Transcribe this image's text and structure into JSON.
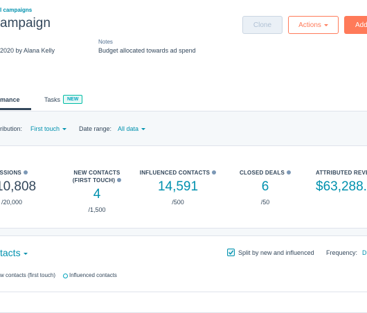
{
  "breadcrumb": "l campaigns",
  "header": {
    "title": "ampaign",
    "meta": "2020 by Alana Kelly",
    "notes_label": "Notes",
    "notes": "Budget allocated towards ad spend",
    "buttons": [
      "Clone",
      "Actions",
      "Add"
    ]
  },
  "tabs": [
    {
      "label": "mance"
    },
    {
      "label": "Tasks",
      "badge": "NEW"
    }
  ],
  "filters": {
    "attribution_label": "ribution:",
    "attribution": "First touch",
    "date_label": "Date range:",
    "date": "All data"
  },
  "stats": [
    {
      "label": "ESSIONS",
      "value": "10,808",
      "goal": "/20,000"
    },
    {
      "label": "NEW CONTACTS (FIRST TOUCH)",
      "value": "4",
      "goal": "/1,500"
    },
    {
      "label": "INFLUENCED CONTACTS",
      "value": "14,591",
      "goal": "/500"
    },
    {
      "label": "CLOSED DEALS",
      "value": "6",
      "goal": "/50"
    },
    {
      "label": "ATTRIBUTED REVEN",
      "value": "$63,288."
    }
  ],
  "section": {
    "title": "tacts",
    "checkbox": "Split by new and influenced",
    "frequency_label": "Frequency:",
    "frequency": "D",
    "legend": [
      "w contacts (first touch)",
      "Influenced contacts"
    ]
  }
}
